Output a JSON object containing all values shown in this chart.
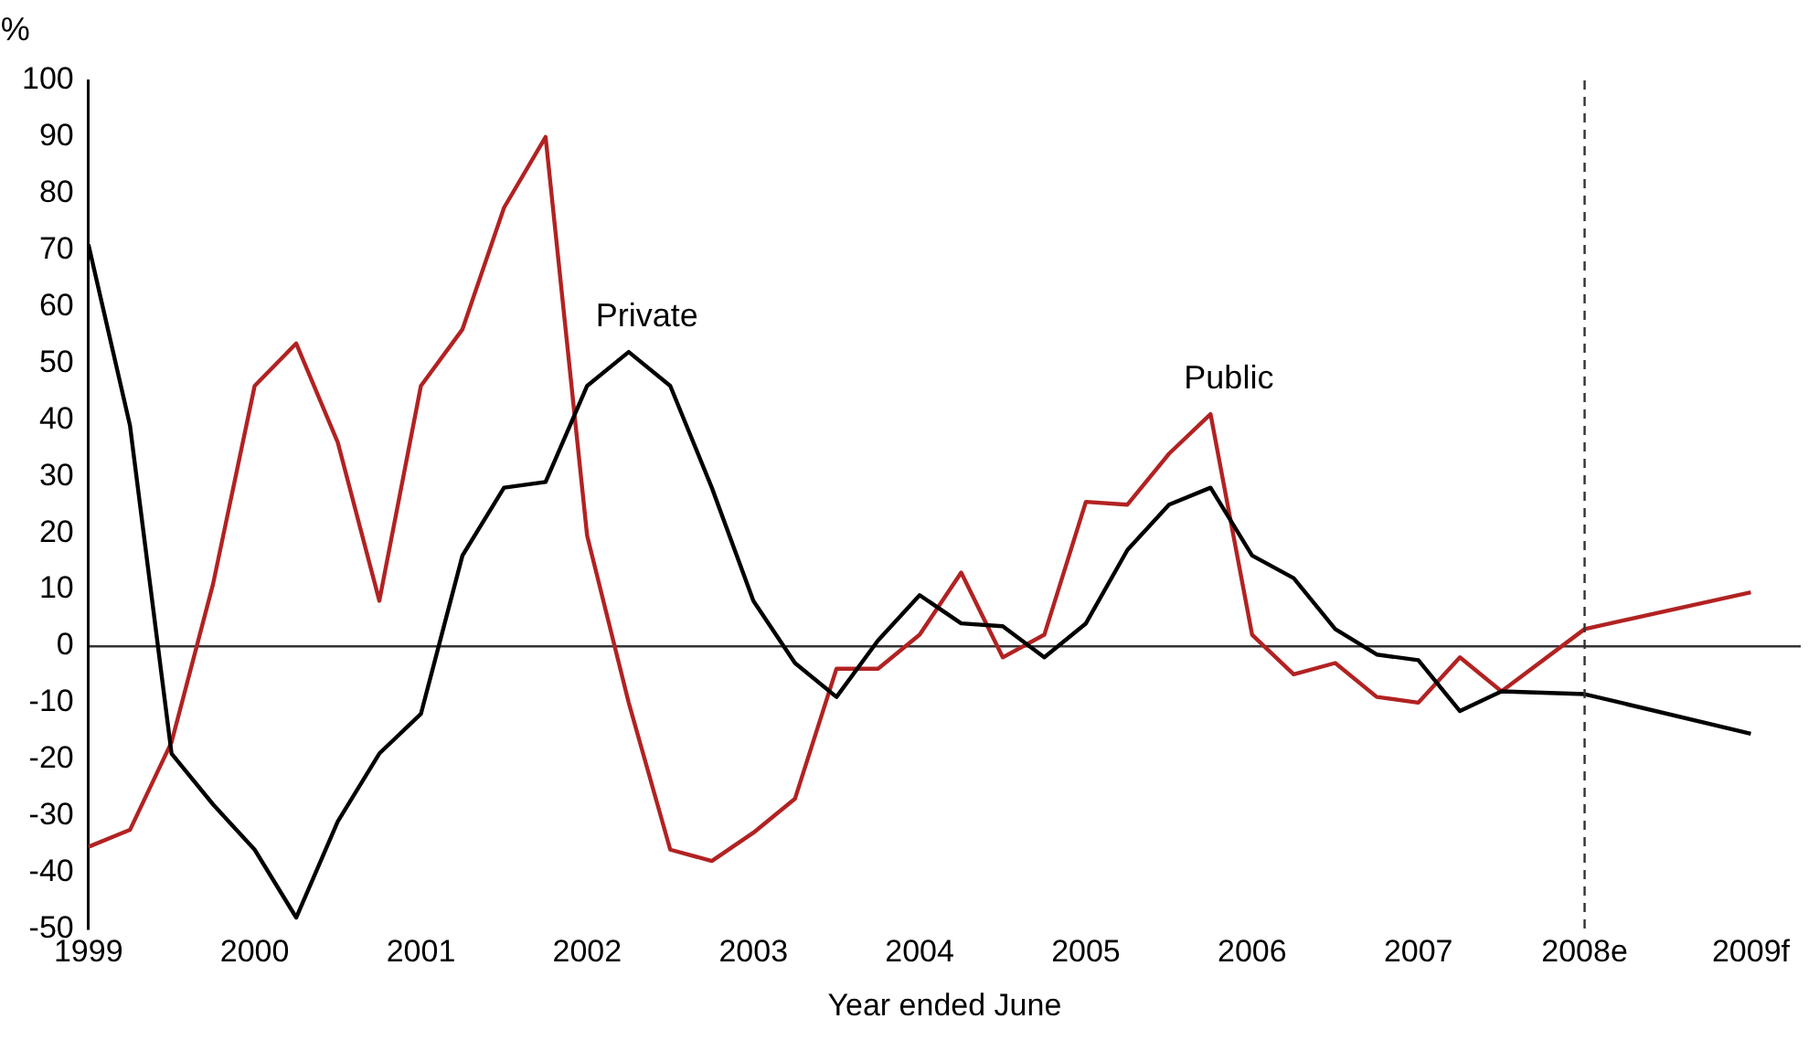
{
  "chart_data": {
    "type": "line",
    "xlabel": "Year ended June",
    "ylabel": "%",
    "x": [
      1999,
      1999.25,
      1999.5,
      1999.75,
      2000,
      2000.25,
      2000.5,
      2000.75,
      2001,
      2001.25,
      2001.5,
      2001.75,
      2002,
      2002.25,
      2002.5,
      2002.75,
      2003,
      2003.25,
      2003.5,
      2003.75,
      2004,
      2004.25,
      2004.5,
      2004.75,
      2005,
      2005.25,
      2005.5,
      2005.75,
      2006,
      2006.25,
      2006.5,
      2006.75,
      2007,
      2007.25,
      2007.5,
      2008,
      2009
    ],
    "series": [
      {
        "color": "#000000",
        "values": [
          71,
          39,
          -19,
          -28,
          -36,
          -48,
          -31,
          -19,
          -12,
          16,
          28,
          29,
          46,
          52,
          46,
          28,
          8,
          -3,
          -9,
          1,
          9,
          4,
          3.5,
          -2,
          4,
          17,
          25,
          28,
          16,
          12,
          3,
          -1.5,
          -2.5,
          -11.5,
          -8,
          -8.5,
          -15.5
        ]
      },
      {
        "color": "#b22222",
        "values": [
          -35.5,
          -32.5,
          -17,
          11,
          46,
          53.5,
          36,
          8,
          46,
          56,
          77.5,
          90,
          19.5,
          -10,
          -36,
          -38,
          -33,
          -27,
          -4,
          -4,
          2,
          13,
          -2,
          2,
          25.5,
          25,
          34,
          41,
          2,
          -5,
          -3,
          -9,
          -10,
          -2,
          -8,
          3,
          9.5
        ]
      }
    ],
    "xlim": [
      1999,
      2009.3
    ],
    "xticks": [
      1999,
      2000,
      2001,
      2002,
      2003,
      2004,
      2005,
      2006,
      2007,
      {
        "value": 2008,
        "label": "2008e"
      },
      {
        "value": 2009,
        "label": "2009f"
      }
    ],
    "ylim": [
      -50,
      100
    ],
    "yticks": [
      -50,
      -40,
      -30,
      -20,
      -10,
      0,
      10,
      20,
      30,
      40,
      50,
      60,
      70,
      80,
      90,
      100
    ],
    "ref_lines": [
      {
        "axis": "x",
        "value": 2008,
        "color": "#333333",
        "line_style": "dashed"
      }
    ],
    "annotations": [
      {
        "text": "Private",
        "x": 2002.25,
        "y": 52
      },
      {
        "text": "Public",
        "x": 2005.75,
        "y": 41
      }
    ],
    "legend": false,
    "marker": "none",
    "line_style": "solid"
  }
}
